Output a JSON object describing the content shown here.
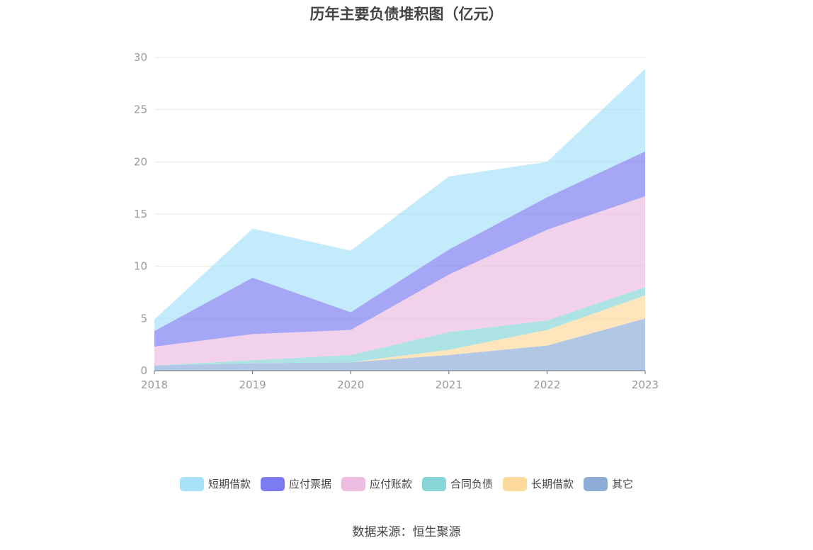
{
  "chart_data": {
    "type": "area",
    "stacked": true,
    "title": "历年主要负债堆积图（亿元）",
    "x": [
      "2018",
      "2019",
      "2020",
      "2021",
      "2022",
      "2023"
    ],
    "ylim": [
      0,
      30
    ],
    "yticks": [
      0,
      5,
      10,
      15,
      20,
      25,
      30
    ],
    "grid": true,
    "legend_position": "bottom",
    "series": [
      {
        "name": "其它",
        "color": "#8eacd8",
        "values": [
          0.5,
          0.7,
          0.8,
          1.5,
          2.4,
          5.0
        ]
      },
      {
        "name": "长期借款",
        "color": "#fdd99b",
        "values": [
          0.0,
          0.0,
          0.0,
          0.5,
          1.5,
          2.2
        ]
      },
      {
        "name": "合同负债",
        "color": "#88d6d8",
        "values": [
          0.0,
          0.3,
          0.7,
          1.7,
          0.9,
          0.8
        ]
      },
      {
        "name": "应付账款",
        "color": "#ecbde0",
        "values": [
          1.8,
          2.5,
          2.4,
          5.5,
          8.7,
          8.7
        ]
      },
      {
        "name": "应付票据",
        "color": "#7b7cf2",
        "values": [
          1.5,
          5.4,
          1.7,
          2.4,
          3.1,
          4.3
        ]
      },
      {
        "name": "短期借款",
        "color": "#a8e1fa",
        "values": [
          1.1,
          4.7,
          5.9,
          7.0,
          3.4,
          7.9
        ]
      }
    ]
  },
  "legend_order": [
    "短期借款",
    "应付票据",
    "应付账款",
    "合同负债",
    "长期借款",
    "其它"
  ],
  "source_text": "数据来源：恒生聚源"
}
